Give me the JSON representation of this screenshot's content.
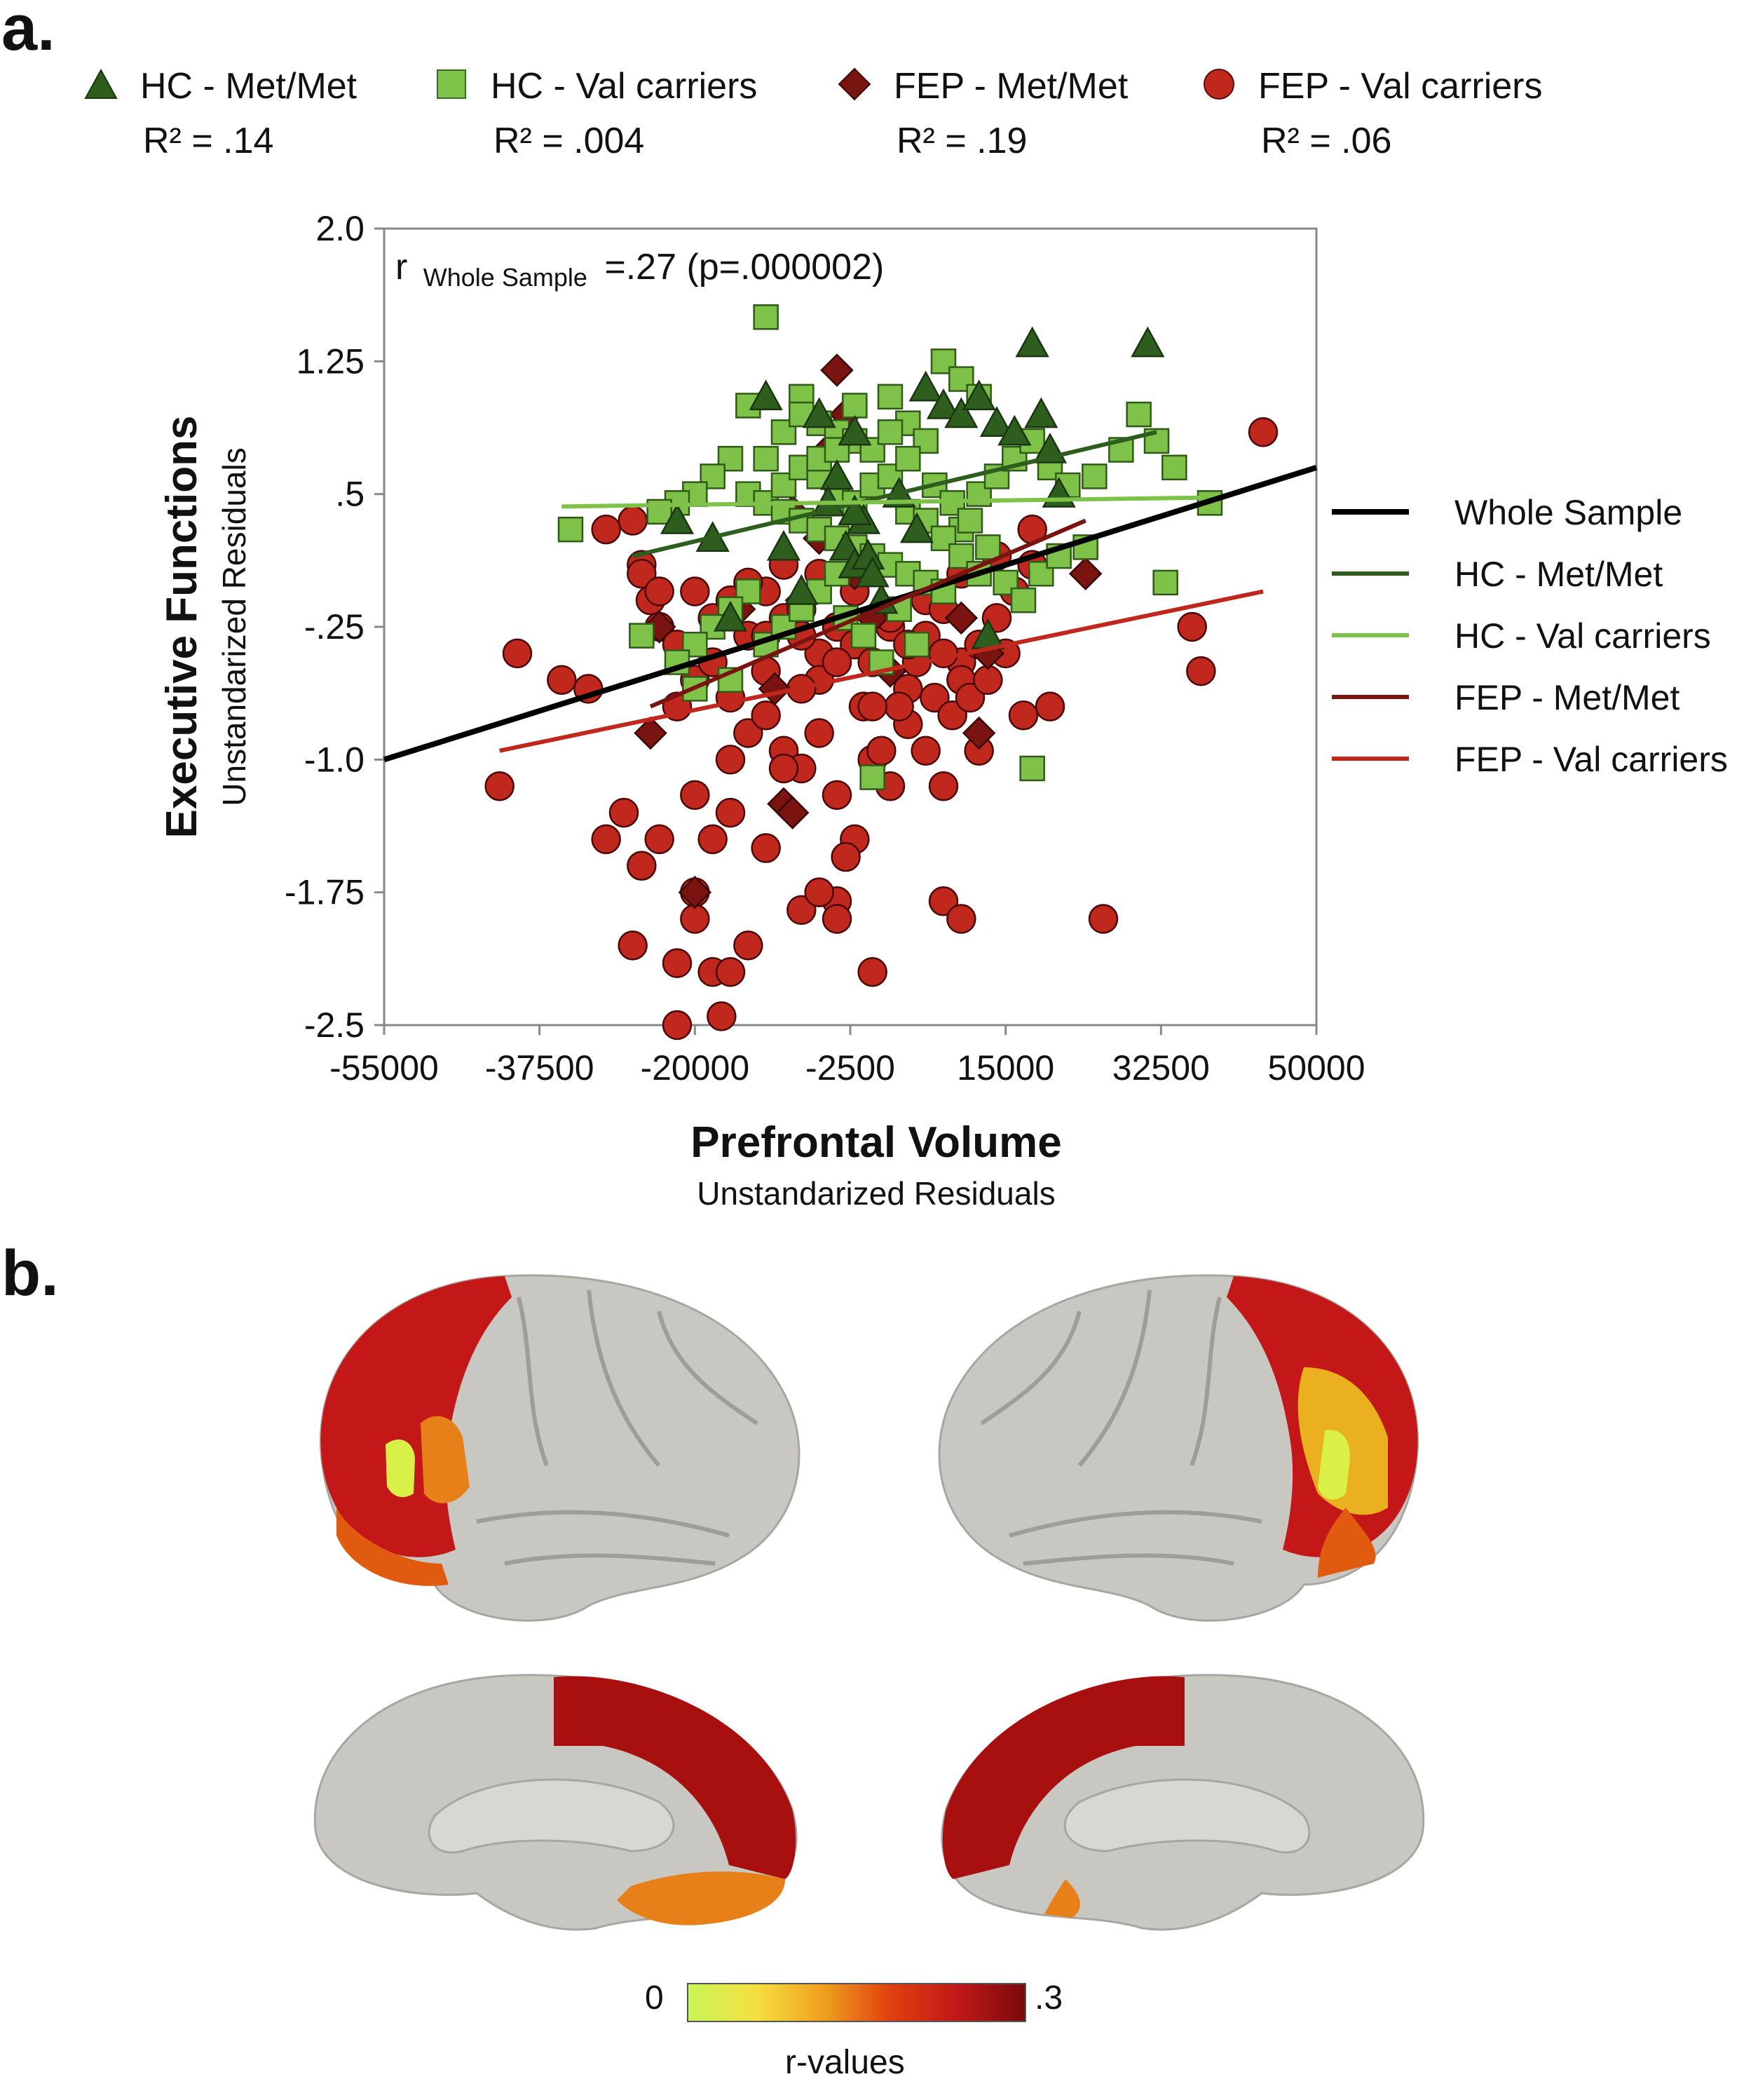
{
  "panel_a_label": "a.",
  "panel_b_label": "b.",
  "legend_groups": [
    {
      "name": "HC - Met/Met",
      "r2": "R² = .14",
      "marker": "triangle",
      "color": "#2e5e1e"
    },
    {
      "name": "HC - Val carriers",
      "r2": "R² = .004",
      "marker": "square",
      "color": "#7fc24a"
    },
    {
      "name": "FEP - Met/Met",
      "r2": "R² = .19",
      "marker": "diamond",
      "color": "#7a1410"
    },
    {
      "name": "FEP - Val carriers",
      "r2": "R² = .06",
      "marker": "circle",
      "color": "#c0281e"
    }
  ],
  "annotation": {
    "prefix": "r",
    "sub": "Whole Sample",
    "suffix": "=.27 (p=.000002)"
  },
  "chart_data": {
    "type": "scatter",
    "xlabel": "Prefrontal Volume",
    "xlabel_sub": "Unstandarized Residuals",
    "ylabel": "Executive Functions",
    "ylabel_sub": "Unstandarized Residuals",
    "xlim": [
      -55000,
      50000
    ],
    "ylim": [
      -2.5,
      2.0
    ],
    "x_ticks": [
      "-55000",
      "-37500",
      "-20000",
      "-2500",
      "15000",
      "32500",
      "50000"
    ],
    "x_tick_values": [
      -55000,
      -37500,
      -20000,
      -2500,
      15000,
      32500,
      50000
    ],
    "y_ticks": [
      "2.0",
      "1.25",
      ".5",
      "-.25",
      "-1.0",
      "-1.75",
      "-2.5"
    ],
    "y_tick_values": [
      2.0,
      1.25,
      0.5,
      -0.25,
      -1.0,
      -1.75,
      -2.5
    ],
    "series": [
      {
        "name": "HC - Met/Met",
        "marker": "triangle",
        "color": "#2e5e1e",
        "points": [
          [
            -12000,
            1.05
          ],
          [
            -6000,
            0.95
          ],
          [
            -2000,
            0.85
          ],
          [
            -4000,
            0.6
          ],
          [
            -5000,
            0.45
          ],
          [
            -3000,
            0.2
          ],
          [
            -1000,
            0.35
          ],
          [
            -2000,
            0.1
          ],
          [
            -500,
            0.15
          ],
          [
            1000,
            -0.1
          ],
          [
            -8000,
            -0.05
          ],
          [
            -16000,
            -0.2
          ],
          [
            -18000,
            0.25
          ],
          [
            -22000,
            0.35
          ],
          [
            6000,
            1.1
          ],
          [
            8000,
            1.0
          ],
          [
            10000,
            0.95
          ],
          [
            12000,
            1.05
          ],
          [
            14000,
            0.9
          ],
          [
            16000,
            0.85
          ],
          [
            19000,
            0.95
          ],
          [
            20000,
            0.75
          ],
          [
            21000,
            0.5
          ],
          [
            18000,
            1.35
          ],
          [
            31000,
            1.35
          ],
          [
            -2000,
            0.4
          ],
          [
            3000,
            0.5
          ],
          [
            5000,
            0.3
          ],
          [
            0,
            0.05
          ],
          [
            13000,
            -0.3
          ],
          [
            -10000,
            0.2
          ]
        ]
      },
      {
        "name": "HC - Val carriers",
        "marker": "square",
        "color": "#7fc24a",
        "points": [
          [
            -12000,
            1.5
          ],
          [
            -14000,
            1.0
          ],
          [
            -8000,
            1.05
          ],
          [
            -6000,
            0.9
          ],
          [
            -4000,
            0.85
          ],
          [
            -2000,
            0.8
          ],
          [
            0,
            0.75
          ],
          [
            2000,
            1.05
          ],
          [
            4000,
            0.9
          ],
          [
            6000,
            0.8
          ],
          [
            8000,
            1.25
          ],
          [
            10000,
            1.15
          ],
          [
            12000,
            1.05
          ],
          [
            -16000,
            0.7
          ],
          [
            -18000,
            0.6
          ],
          [
            -20000,
            0.5
          ],
          [
            -22000,
            0.45
          ],
          [
            -24000,
            0.4
          ],
          [
            -34000,
            0.3
          ],
          [
            -14000,
            0.5
          ],
          [
            -12000,
            0.45
          ],
          [
            -10000,
            0.4
          ],
          [
            -8000,
            0.35
          ],
          [
            -6000,
            0.3
          ],
          [
            -4000,
            0.25
          ],
          [
            -2000,
            0.2
          ],
          [
            0,
            0.15
          ],
          [
            2000,
            0.1
          ],
          [
            4000,
            0.05
          ],
          [
            6000,
            0.0
          ],
          [
            8000,
            -0.05
          ],
          [
            10000,
            0.3
          ],
          [
            12000,
            0.5
          ],
          [
            14000,
            0.6
          ],
          [
            16000,
            0.7
          ],
          [
            18000,
            0.8
          ],
          [
            20000,
            0.65
          ],
          [
            22000,
            0.55
          ],
          [
            25000,
            0.6
          ],
          [
            28000,
            0.75
          ],
          [
            30000,
            0.95
          ],
          [
            32000,
            0.8
          ],
          [
            34000,
            0.65
          ],
          [
            38000,
            0.45
          ],
          [
            -12000,
            0.7
          ],
          [
            -10000,
            0.55
          ],
          [
            -8000,
            0.65
          ],
          [
            -6000,
            0.6
          ],
          [
            -4000,
            0.5
          ],
          [
            -2000,
            0.45
          ],
          [
            0,
            0.55
          ],
          [
            2000,
            0.6
          ],
          [
            4000,
            0.4
          ],
          [
            6000,
            0.35
          ],
          [
            8000,
            0.25
          ],
          [
            10000,
            0.15
          ],
          [
            12000,
            0.05
          ],
          [
            -14000,
            -0.05
          ],
          [
            -16000,
            -0.15
          ],
          [
            -18000,
            -0.25
          ],
          [
            -20000,
            -0.35
          ],
          [
            -22000,
            -0.45
          ],
          [
            -20000,
            -0.6
          ],
          [
            -16000,
            -0.55
          ],
          [
            -12000,
            -0.35
          ],
          [
            -10000,
            -0.25
          ],
          [
            -8000,
            -0.15
          ],
          [
            -6000,
            -0.05
          ],
          [
            -4000,
            0.05
          ],
          [
            -3000,
            -0.2
          ],
          [
            -1000,
            -0.3
          ],
          [
            1000,
            -0.45
          ],
          [
            3000,
            -0.15
          ],
          [
            5000,
            -0.35
          ],
          [
            7000,
            0.55
          ],
          [
            9000,
            0.45
          ],
          [
            11000,
            0.35
          ],
          [
            13000,
            0.2
          ],
          [
            15000,
            0.0
          ],
          [
            17000,
            -0.1
          ],
          [
            19000,
            0.05
          ],
          [
            21000,
            0.15
          ],
          [
            24000,
            0.2
          ],
          [
            33000,
            0.0
          ],
          [
            0,
            -1.1
          ],
          [
            18000,
            -1.05
          ],
          [
            -26000,
            -0.3
          ],
          [
            -10000,
            0.85
          ],
          [
            -6000,
            0.7
          ],
          [
            4000,
            0.7
          ],
          [
            -2000,
            1.0
          ],
          [
            2000,
            0.85
          ],
          [
            -8000,
            0.95
          ],
          [
            -4000,
            0.75
          ]
        ]
      },
      {
        "name": "FEP - Met/Met",
        "marker": "diamond",
        "color": "#7a1410",
        "points": [
          [
            -4000,
            1.2
          ],
          [
            -3000,
            0.95
          ],
          [
            -5000,
            0.75
          ],
          [
            -9000,
            0.4
          ],
          [
            -6000,
            0.25
          ],
          [
            -2000,
            0.05
          ],
          [
            -24000,
            -0.25
          ],
          [
            -8000,
            -0.1
          ],
          [
            0,
            -0.2
          ],
          [
            10000,
            -0.2
          ],
          [
            13000,
            -0.4
          ],
          [
            24000,
            0.05
          ],
          [
            -25000,
            -0.85
          ],
          [
            -20000,
            -1.75
          ],
          [
            -10000,
            -1.25
          ],
          [
            -9000,
            -1.3
          ],
          [
            -11000,
            -0.6
          ],
          [
            12000,
            -0.85
          ],
          [
            2000,
            -0.5
          ],
          [
            -15000,
            -0.15
          ]
        ]
      },
      {
        "name": "FEP - Val carriers",
        "marker": "circle",
        "color": "#c0281e",
        "points": [
          [
            -27000,
            0.35
          ],
          [
            -26000,
            0.1
          ],
          [
            -25000,
            -0.1
          ],
          [
            -24000,
            -0.25
          ],
          [
            -22000,
            -0.35
          ],
          [
            -20000,
            -0.55
          ],
          [
            -18000,
            -0.2
          ],
          [
            -16000,
            -0.1
          ],
          [
            -14000,
            -0.3
          ],
          [
            -12000,
            -0.5
          ],
          [
            -10000,
            -0.2
          ],
          [
            -8000,
            -0.15
          ],
          [
            -6000,
            -0.4
          ],
          [
            -4000,
            -0.25
          ],
          [
            -2000,
            -0.35
          ],
          [
            0,
            -0.45
          ],
          [
            2000,
            -0.25
          ],
          [
            4000,
            -0.6
          ],
          [
            6000,
            -0.1
          ],
          [
            8000,
            -0.15
          ],
          [
            10000,
            -0.45
          ],
          [
            12000,
            -0.35
          ],
          [
            14000,
            -0.2
          ],
          [
            16000,
            -0.05
          ],
          [
            18000,
            0.1
          ],
          [
            -40000,
            -0.4
          ],
          [
            -42000,
            -1.15
          ],
          [
            -32000,
            -0.6
          ],
          [
            -28000,
            -1.3
          ],
          [
            -26000,
            -1.6
          ],
          [
            -27000,
            -2.05
          ],
          [
            -22000,
            -2.15
          ],
          [
            -22000,
            -2.5
          ],
          [
            -18000,
            -2.2
          ],
          [
            -17000,
            -2.45
          ],
          [
            -16000,
            -2.2
          ],
          [
            -20000,
            -1.75
          ],
          [
            -18000,
            -1.45
          ],
          [
            -16000,
            -1.0
          ],
          [
            -14000,
            -0.85
          ],
          [
            -12000,
            -0.75
          ],
          [
            -10000,
            -0.95
          ],
          [
            -8000,
            -1.05
          ],
          [
            -6000,
            -0.85
          ],
          [
            -4000,
            -1.2
          ],
          [
            -2000,
            -1.45
          ],
          [
            -3000,
            -1.55
          ],
          [
            -4000,
            -1.8
          ],
          [
            -8000,
            -1.85
          ],
          [
            -12000,
            -1.5
          ],
          [
            -14000,
            -2.05
          ],
          [
            -16000,
            -1.3
          ],
          [
            -20000,
            -1.2
          ],
          [
            0,
            -1.0
          ],
          [
            2000,
            -1.15
          ],
          [
            4000,
            -0.8
          ],
          [
            6000,
            -0.95
          ],
          [
            8000,
            -1.15
          ],
          [
            10000,
            -0.55
          ],
          [
            12000,
            -0.95
          ],
          [
            -6000,
            -1.75
          ],
          [
            -4000,
            -1.9
          ],
          [
            0,
            -2.2
          ],
          [
            8000,
            -1.8
          ],
          [
            10000,
            -1.9
          ],
          [
            -1000,
            -0.7
          ],
          [
            1000,
            -0.95
          ],
          [
            3000,
            -0.7
          ],
          [
            5000,
            -0.45
          ],
          [
            7000,
            -0.65
          ],
          [
            9000,
            -0.75
          ],
          [
            11000,
            -0.65
          ],
          [
            13000,
            -0.55
          ],
          [
            15000,
            -0.4
          ],
          [
            17000,
            -0.75
          ],
          [
            20000,
            -0.7
          ],
          [
            26000,
            -1.9
          ],
          [
            36000,
            -0.25
          ],
          [
            37000,
            -0.5
          ],
          [
            44000,
            0.85
          ],
          [
            -30000,
            0.3
          ],
          [
            -35000,
            -0.55
          ],
          [
            -24000,
            -1.45
          ],
          [
            -10000,
            -1.05
          ],
          [
            -6000,
            -0.55
          ],
          [
            -8000,
            -0.3
          ],
          [
            -12000,
            -0.05
          ],
          [
            -14000,
            0.0
          ],
          [
            -10000,
            0.1
          ],
          [
            -6000,
            0.05
          ],
          [
            -2000,
            -0.05
          ],
          [
            2000,
            -0.2
          ],
          [
            6000,
            -0.3
          ],
          [
            10000,
            0.05
          ],
          [
            14000,
            0.15
          ],
          [
            18000,
            0.3
          ],
          [
            -18000,
            -0.45
          ],
          [
            -22000,
            -0.7
          ],
          [
            -26000,
            0.05
          ],
          [
            -16000,
            -0.65
          ],
          [
            -12000,
            -0.3
          ],
          [
            -8000,
            -0.6
          ],
          [
            -4000,
            -0.45
          ],
          [
            0,
            -0.7
          ],
          [
            4000,
            -0.35
          ],
          [
            8000,
            -0.4
          ],
          [
            -20000,
            -0.05
          ],
          [
            -24000,
            -0.05
          ],
          [
            -20000,
            -1.9
          ],
          [
            -30000,
            -1.45
          ]
        ]
      }
    ],
    "lines": [
      {
        "name": "Whole Sample",
        "color": "#000000",
        "width": 8,
        "x": [
          -55000,
          50000
        ],
        "y": [
          -1.0,
          0.65
        ]
      },
      {
        "name": "HC - Met/Met",
        "color": "#2e5e1e",
        "width": 6,
        "x": [
          -27000,
          32000
        ],
        "y": [
          0.15,
          0.85
        ]
      },
      {
        "name": "HC - Val carriers",
        "color": "#7fc24a",
        "width": 6,
        "x": [
          -35000,
          37000
        ],
        "y": [
          0.43,
          0.48
        ]
      },
      {
        "name": "FEP - Met/Met",
        "color": "#7a1410",
        "width": 6,
        "x": [
          -25000,
          24000
        ],
        "y": [
          -0.7,
          0.35
        ]
      },
      {
        "name": "FEP - Val carriers",
        "color": "#c0281e",
        "width": 6,
        "x": [
          -42000,
          44000
        ],
        "y": [
          -0.95,
          -0.05
        ]
      }
    ],
    "line_legend": [
      "Whole Sample",
      "HC - Met/Met",
      "HC - Val carriers",
      "FEP - Met/Met",
      "FEP - Val carriers"
    ],
    "grid": false,
    "legend_position": "right"
  },
  "colorbar": {
    "min_label": "0",
    "max_label": ".3",
    "title": "r-values",
    "colors": [
      "#c8f55a",
      "#f5e040",
      "#f0a020",
      "#e04010",
      "#c01818",
      "#7a0a0a"
    ]
  }
}
